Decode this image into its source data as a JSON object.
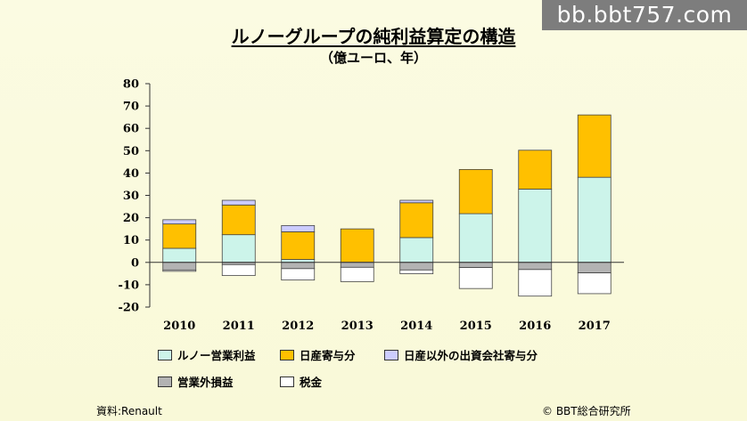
{
  "watermark": "bb.bbt757.com",
  "title": "ルノーグループの純利益算定の構造",
  "subtitle": "（億ユーロ、年）",
  "colors": {
    "operating": "#ccf4ea",
    "nissan": "#ffc000",
    "other": "#ccccff",
    "nonop": "#b3b3b3",
    "tax": "#ffffff"
  },
  "chart_data": {
    "type": "bar",
    "stacked": true,
    "categories": [
      "2010",
      "2011",
      "2012",
      "2013",
      "2014",
      "2015",
      "2016",
      "2017"
    ],
    "ylim": [
      -20,
      80
    ],
    "yticks": [
      "80",
      "70",
      "60",
      "50",
      "40",
      "30",
      "20",
      "10",
      "0",
      "-10",
      "-20"
    ],
    "series": [
      {
        "name": "ルノー営業利益",
        "key": "operating",
        "values": [
          6.3,
          12.4,
          1.3,
          0.0,
          11.1,
          21.8,
          32.8,
          38.1
        ]
      },
      {
        "name": "日産寄与分",
        "key": "nissan",
        "values": [
          10.9,
          13.3,
          12.4,
          15.0,
          15.6,
          19.8,
          17.4,
          27.9
        ]
      },
      {
        "name": "日産以外の出資会社寄与分",
        "key": "other",
        "values": [
          1.9,
          2.1,
          2.8,
          0.0,
          1.1,
          0.0,
          0.0,
          0.0
        ]
      },
      {
        "name": "営業外損益",
        "key": "nonop",
        "values": [
          -3.4,
          -1.0,
          -2.8,
          -2.2,
          -3.4,
          -2.3,
          -3.2,
          -4.7
        ]
      },
      {
        "name": "税金",
        "key": "tax",
        "values": [
          -0.6,
          -4.9,
          -5.1,
          -6.4,
          -1.7,
          -9.4,
          -11.9,
          -9.3
        ]
      }
    ]
  },
  "footer": {
    "source": "資料:Renault",
    "copyright": "© BBT総合研究所"
  }
}
